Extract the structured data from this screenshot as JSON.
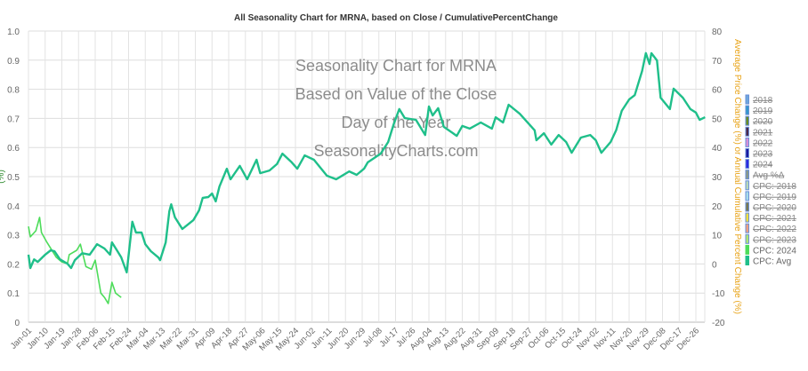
{
  "chart_data": {
    "type": "line",
    "title": "All Seasonality Chart for MRNA, based on Close / CumulativePercentChange",
    "watermark": [
      "Seasonality Chart for MRNA",
      "Based on Value of the Close",
      "Day of the Year",
      "SeasonalityCharts.com"
    ],
    "left_axis": {
      "label": "(%)",
      "ylim": [
        0,
        1.0
      ],
      "ticks": [
        "0",
        "0.1",
        "0.2",
        "0.3",
        "0.4",
        "0.5",
        "0.6",
        "0.7",
        "0.8",
        "0.9",
        "1.0"
      ]
    },
    "right_axis": {
      "label": "Average Price Change (%) or Annual Cumulative Percent Change (%)",
      "ylim": [
        -20,
        80
      ],
      "ticks": [
        "-20",
        "-10",
        "0",
        "10",
        "20",
        "30",
        "40",
        "50",
        "60",
        "70",
        "80"
      ],
      "color": "#e8a317"
    },
    "x_ticks": [
      "Jan-01",
      "Jan-10",
      "Jan-19",
      "Jan-28",
      "Feb-06",
      "Feb-15",
      "Feb-24",
      "Mar-04",
      "Mar-13",
      "Mar-22",
      "Mar-31",
      "Apr-09",
      "Apr-18",
      "Apr-27",
      "May-06",
      "May-15",
      "May-24",
      "Jun-02",
      "Jun-11",
      "Jun-20",
      "Jun-29",
      "Jul-08",
      "Jul-17",
      "Jul-26",
      "Aug-04",
      "Aug-13",
      "Aug-22",
      "Aug-31",
      "Sep-09",
      "Sep-18",
      "Sep-27",
      "Oct-06",
      "Oct-15",
      "Oct-24",
      "Nov-02",
      "Nov-11",
      "Nov-20",
      "Nov-29",
      "Dec-08",
      "Dec-17",
      "Dec-26"
    ],
    "grid": true,
    "legend_placement": "right",
    "legend": [
      {
        "label": "2018",
        "color": "#6fa8dc",
        "hidden": true
      },
      {
        "label": "2019",
        "color": "#3399cc",
        "hidden": true
      },
      {
        "label": "2020",
        "color": "#6b8e23",
        "hidden": true
      },
      {
        "label": "2021",
        "color": "#4b2a4b",
        "hidden": true
      },
      {
        "label": "2022",
        "color": "#d68fd6",
        "hidden": true
      },
      {
        "label": "2023",
        "color": "#1a1aa0",
        "hidden": true
      },
      {
        "label": "2024",
        "color": "#2a2ae0",
        "hidden": true
      },
      {
        "label": "Avg %Δ",
        "color": "#8a9a8a",
        "hidden": true
      },
      {
        "label": "CPC: 2018",
        "color": "#b8d8b8",
        "hidden": true
      },
      {
        "label": "CPC: 2019",
        "color": "#a8dce8",
        "hidden": true
      },
      {
        "label": "CPC: 2020",
        "color": "#7a7a50",
        "hidden": true
      },
      {
        "label": "CPC: 2021",
        "color": "#f0e040",
        "hidden": true
      },
      {
        "label": "CPC: 2022",
        "color": "#f0a080",
        "hidden": true
      },
      {
        "label": "CPC: 2023",
        "color": "#b0e870",
        "hidden": true
      },
      {
        "label": "CPC: 2024",
        "color": "#4ddc5a",
        "hidden": false
      },
      {
        "label": "CPC: Avg",
        "color": "#1fbf8a",
        "hidden": false
      }
    ],
    "series": [
      {
        "name": "CPC: 2024",
        "color": "#4ddc5a",
        "axis": "right",
        "points": [
          [
            "Jan-01",
            12.9
          ],
          [
            "Jan-02",
            9.3
          ],
          [
            "Jan-05",
            11.4
          ],
          [
            "Jan-07",
            16
          ],
          [
            "Jan-08",
            10.8
          ],
          [
            "Jan-11",
            7.4
          ],
          [
            "Jan-16",
            2.3
          ],
          [
            "Jan-19",
            0.7
          ],
          [
            "Jan-22",
            0.1
          ],
          [
            "Jan-23",
            3.2
          ],
          [
            "Jan-27",
            4.7
          ],
          [
            "Jan-29",
            6.8
          ],
          [
            "Feb-01",
            -0.9
          ],
          [
            "Feb-04",
            -1.8
          ],
          [
            "Feb-06",
            1.3
          ],
          [
            "Feb-09",
            -10
          ],
          [
            "Feb-11",
            -11.5
          ],
          [
            "Feb-13",
            -13.6
          ],
          [
            "Feb-15",
            -6.3
          ],
          [
            "Feb-17",
            -10
          ],
          [
            "Feb-20",
            -11.5
          ]
        ]
      },
      {
        "name": "CPC: Avg",
        "color": "#1fbf8a",
        "axis": "right",
        "points": [
          [
            "Jan-01",
            3.2
          ],
          [
            "Jan-02",
            -1.4
          ],
          [
            "Jan-04",
            1.6
          ],
          [
            "Jan-06",
            0.7
          ],
          [
            "Jan-10",
            3.2
          ],
          [
            "Jan-13",
            4.7
          ],
          [
            "Jan-15",
            4.4
          ],
          [
            "Jan-18",
            1.6
          ],
          [
            "Jan-22",
            0.1
          ],
          [
            "Jan-24",
            -1.4
          ],
          [
            "Jan-26",
            1.3
          ],
          [
            "Jan-30",
            3.7
          ],
          [
            "Feb-03",
            3.2
          ],
          [
            "Feb-07",
            6.8
          ],
          [
            "Feb-11",
            5.3
          ],
          [
            "Feb-14",
            3.2
          ],
          [
            "Feb-15",
            7.4
          ],
          [
            "Feb-18",
            4.4
          ],
          [
            "Feb-20",
            2.3
          ],
          [
            "Feb-23",
            -2.9
          ],
          [
            "Feb-26",
            14.5
          ],
          [
            "Feb-28",
            10.8
          ],
          [
            "Mar-02",
            10.8
          ],
          [
            "Mar-04",
            6.8
          ],
          [
            "Mar-07",
            4.4
          ],
          [
            "Mar-11",
            2.3
          ],
          [
            "Mar-12",
            1.3
          ],
          [
            "Mar-15",
            7.4
          ],
          [
            "Mar-17",
            18.1
          ],
          [
            "Mar-18",
            20.5
          ],
          [
            "Mar-20",
            16
          ],
          [
            "Mar-24",
            12
          ],
          [
            "Mar-30",
            15.1
          ],
          [
            "Apr-02",
            18.4
          ],
          [
            "Apr-04",
            22.7
          ],
          [
            "Apr-07",
            23
          ],
          [
            "Apr-09",
            24.2
          ],
          [
            "Apr-11",
            21.5
          ],
          [
            "Apr-13",
            26.6
          ],
          [
            "Apr-17",
            32.7
          ],
          [
            "Apr-19",
            29.1
          ],
          [
            "Apr-24",
            33.7
          ],
          [
            "Apr-28",
            29.1
          ],
          [
            "May-03",
            35.8
          ],
          [
            "May-05",
            31.2
          ],
          [
            "May-10",
            32.1
          ],
          [
            "May-14",
            34.3
          ],
          [
            "May-17",
            37.9
          ],
          [
            "May-22",
            34.9
          ],
          [
            "May-25",
            32.7
          ],
          [
            "May-29",
            37.3
          ],
          [
            "Jun-03",
            35.8
          ],
          [
            "Jun-10",
            30.3
          ],
          [
            "Jun-15",
            29.1
          ],
          [
            "Jun-22",
            31.8
          ],
          [
            "Jun-26",
            30.6
          ],
          [
            "Jun-30",
            32.7
          ],
          [
            "Jul-02",
            34.9
          ],
          [
            "Jul-09",
            37.9
          ],
          [
            "Jul-13",
            41.9
          ],
          [
            "Jul-16",
            48
          ],
          [
            "Jul-19",
            53.2
          ],
          [
            "Jul-22",
            50.1
          ],
          [
            "Jul-28",
            49.5
          ],
          [
            "Aug-02",
            44.3
          ],
          [
            "Aug-04",
            54.1
          ],
          [
            "Aug-06",
            51
          ],
          [
            "Aug-09",
            53.5
          ],
          [
            "Aug-12",
            47.1
          ],
          [
            "Aug-19",
            44
          ],
          [
            "Aug-22",
            47.4
          ],
          [
            "Aug-26",
            46.5
          ],
          [
            "Sep-01",
            48.6
          ],
          [
            "Sep-07",
            46.5
          ],
          [
            "Sep-09",
            50.4
          ],
          [
            "Sep-13",
            48.6
          ],
          [
            "Sep-16",
            54.7
          ],
          [
            "Sep-22",
            51.6
          ],
          [
            "Sep-30",
            45.9
          ],
          [
            "Oct-01",
            42.5
          ],
          [
            "Oct-05",
            44.9
          ],
          [
            "Oct-09",
            41
          ],
          [
            "Oct-13",
            44.3
          ],
          [
            "Oct-17",
            41.9
          ],
          [
            "Oct-20",
            38.2
          ],
          [
            "Oct-25",
            43.4
          ],
          [
            "Oct-30",
            44.3
          ],
          [
            "Nov-02",
            42.5
          ],
          [
            "Nov-05",
            38.2
          ],
          [
            "Nov-10",
            41.9
          ],
          [
            "Nov-13",
            45.9
          ],
          [
            "Nov-16",
            52.6
          ],
          [
            "Nov-20",
            56.5
          ],
          [
            "Nov-23",
            58
          ],
          [
            "Nov-27",
            66.3
          ],
          [
            "Nov-29",
            72.4
          ],
          [
            "Dec-01",
            68.7
          ],
          [
            "Dec-02",
            72.4
          ],
          [
            "Dec-05",
            69.9
          ],
          [
            "Dec-07",
            57.1
          ],
          [
            "Dec-12",
            53.2
          ],
          [
            "Dec-14",
            60.2
          ],
          [
            "Dec-19",
            57.1
          ],
          [
            "Dec-23",
            53.2
          ],
          [
            "Dec-26",
            52
          ],
          [
            "Dec-28",
            49.5
          ],
          [
            "Dec-31",
            50.4
          ]
        ]
      }
    ]
  }
}
